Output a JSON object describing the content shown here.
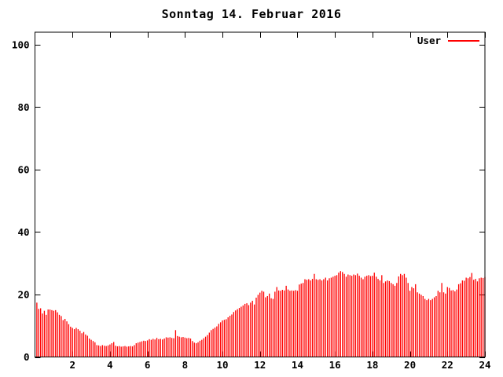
{
  "title": "Sonntag 14. Februar 2016",
  "colors": {
    "background": "#ffffff",
    "frame": "#000000",
    "text": "#000000",
    "series_user": "#ff0000"
  },
  "legend": {
    "label": "User"
  },
  "chart_data": {
    "type": "bar",
    "title": "Sonntag 14. Februar 2016",
    "xlabel": "",
    "ylabel": "",
    "xlim": [
      0,
      24
    ],
    "ylim": [
      0,
      104
    ],
    "xticks": [
      2,
      4,
      6,
      8,
      10,
      12,
      14,
      16,
      18,
      20,
      22,
      24
    ],
    "yticks": [
      0,
      20,
      40,
      60,
      80,
      100
    ],
    "grid": false,
    "legend_position": "top-right",
    "bar_style": "impulses",
    "x_start": 0.1,
    "x_step": 0.1,
    "series": [
      {
        "name": "User",
        "color": "#ff0000",
        "values": [
          17.4,
          15.4,
          15.6,
          13.9,
          14.8,
          13.5,
          15.2,
          15.2,
          15.0,
          14.8,
          15.0,
          14.3,
          13.5,
          13.1,
          11.8,
          12.2,
          11.4,
          10.5,
          9.7,
          9.3,
          8.9,
          9.3,
          8.9,
          8.4,
          7.6,
          8.0,
          7.2,
          6.8,
          5.9,
          5.5,
          5.1,
          4.7,
          3.8,
          3.7,
          3.5,
          3.8,
          3.6,
          3.5,
          3.7,
          4.0,
          4.4,
          4.8,
          3.6,
          3.4,
          3.5,
          3.3,
          3.4,
          3.5,
          3.3,
          3.4,
          3.5,
          3.4,
          3.8,
          4.4,
          4.6,
          4.8,
          5.0,
          5.2,
          5.1,
          5.3,
          5.7,
          5.5,
          5.8,
          5.6,
          6.1,
          5.7,
          5.8,
          5.6,
          5.9,
          6.3,
          6.2,
          6.3,
          6.1,
          6.0,
          8.6,
          6.7,
          6.5,
          6.3,
          6.4,
          6.2,
          6.0,
          6.1,
          5.9,
          5.1,
          4.6,
          4.4,
          4.7,
          5.2,
          5.5,
          6.0,
          6.5,
          7.0,
          7.8,
          8.6,
          9.0,
          9.4,
          9.8,
          10.6,
          11.1,
          11.7,
          11.9,
          12.1,
          12.7,
          13.2,
          13.6,
          14.4,
          14.9,
          15.3,
          15.7,
          16.1,
          16.5,
          17.0,
          17.2,
          16.6,
          17.4,
          18.0,
          16.8,
          19.0,
          19.9,
          20.6,
          21.2,
          20.9,
          19.1,
          19.5,
          20.3,
          18.8,
          18.6,
          20.9,
          22.4,
          21.3,
          21.2,
          21.5,
          21.3,
          22.8,
          21.6,
          21.2,
          21.3,
          21.2,
          21.4,
          21.2,
          23.2,
          23.5,
          23.7,
          24.9,
          24.7,
          24.9,
          24.5,
          25.0,
          26.6,
          24.9,
          24.7,
          24.9,
          24.5,
          24.9,
          25.4,
          24.5,
          25.2,
          25.4,
          25.7,
          26.0,
          26.2,
          27.0,
          27.5,
          27.2,
          26.6,
          25.7,
          26.4,
          26.2,
          26.0,
          26.4,
          26.2,
          26.7,
          26.0,
          25.4,
          24.9,
          25.7,
          26.0,
          26.2,
          25.9,
          26.0,
          27.0,
          25.7,
          25.0,
          24.5,
          26.2,
          23.7,
          24.2,
          24.5,
          24.3,
          23.7,
          23.3,
          22.8,
          23.7,
          25.8,
          26.6,
          26.2,
          26.6,
          25.4,
          23.7,
          21.2,
          22.4,
          22.0,
          23.3,
          20.7,
          20.3,
          19.9,
          19.5,
          18.6,
          18.2,
          18.6,
          18.2,
          18.6,
          19.1,
          19.5,
          21.2,
          20.7,
          23.7,
          20.7,
          20.3,
          22.4,
          22.1,
          21.3,
          21.4,
          21.0,
          21.6,
          23.3,
          23.6,
          24.5,
          24.4,
          25.4,
          25.2,
          25.6,
          26.9,
          24.7,
          25.0,
          24.2,
          25.2,
          25.4,
          25.3,
          25.6
        ]
      }
    ]
  }
}
